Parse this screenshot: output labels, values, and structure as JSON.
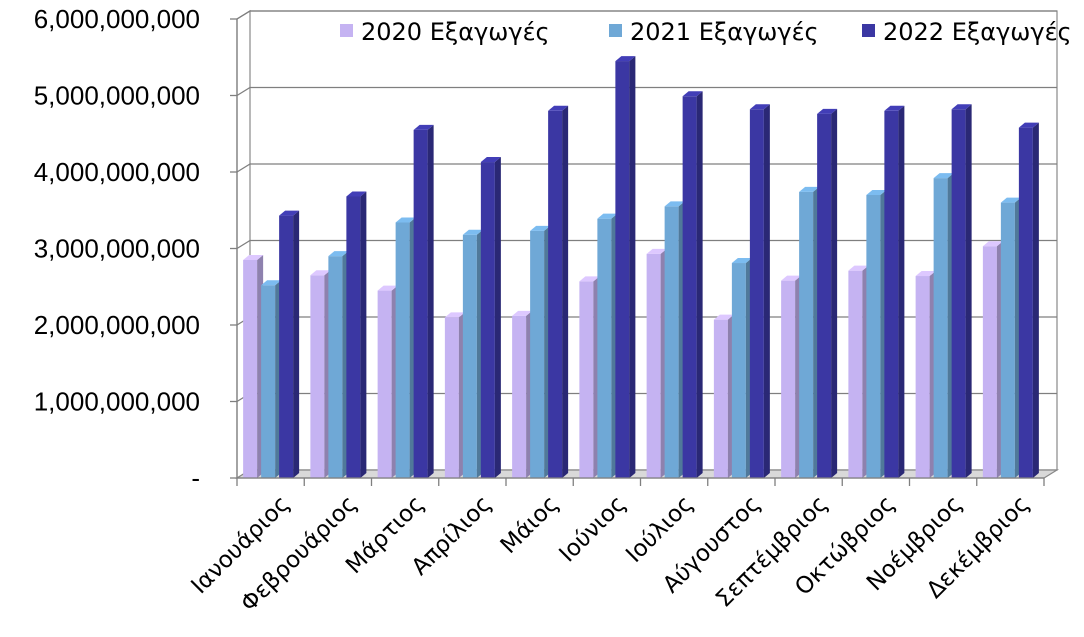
{
  "chart_data": {
    "type": "bar",
    "title": "",
    "xlabel": "",
    "ylabel": "",
    "categories": [
      "Ιανουάριος",
      "Φεβρουάριος",
      "Μάρτιος",
      "Απρίλιος",
      "Μάιος",
      "Ιούνιος",
      "Ιούλιος",
      "Αύγουστος",
      "Σεπτέμβριος",
      "Οκτώβριος",
      "Νοέμβριος",
      "Δεκέμβριος"
    ],
    "series": [
      {
        "name": "2020 Εξαγωγές",
        "color": "#C5B3F2",
        "values": [
          2850000000,
          2650000000,
          2450000000,
          2100000000,
          2120000000,
          2570000000,
          2930000000,
          2070000000,
          2580000000,
          2710000000,
          2640000000,
          3030000000
        ]
      },
      {
        "name": "2021 Εξαγωγές",
        "color": "#6FA8D6",
        "values": [
          2520000000,
          2900000000,
          3340000000,
          3180000000,
          3230000000,
          3390000000,
          3550000000,
          2810000000,
          3740000000,
          3700000000,
          3920000000,
          3600000000
        ]
      },
      {
        "name": "2022 Εξαγωγές",
        "color": "#3B37A3",
        "values": [
          3430000000,
          3680000000,
          4550000000,
          4130000000,
          4800000000,
          5450000000,
          4990000000,
          4820000000,
          4760000000,
          4800000000,
          4820000000,
          4580000000
        ]
      }
    ],
    "yticks": [
      "-",
      "1,000,000,000",
      "2,000,000,000",
      "3,000,000,000",
      "4,000,000,000",
      "5,000,000,000",
      "6,000,000,000"
    ],
    "ylim": [
      0,
      6000000000
    ],
    "grid": true,
    "legend_position": "top-right"
  }
}
